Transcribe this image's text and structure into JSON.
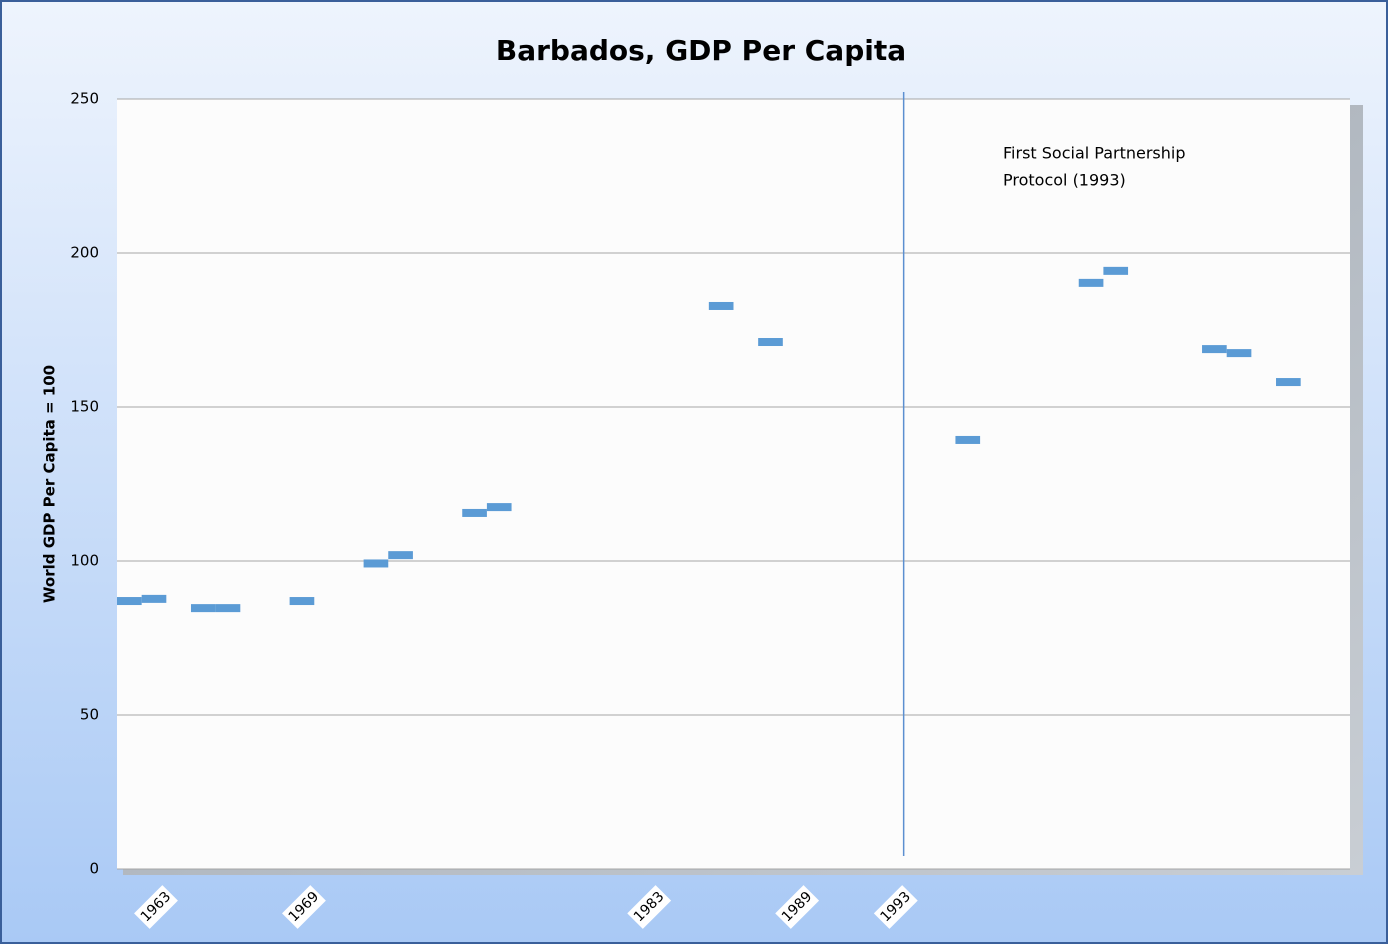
{
  "chart_data": {
    "type": "dash",
    "title": "Barbados, GDP Per Capita",
    "y_label": "World GDP Per Capita = 100",
    "annotation": {
      "text_lines": [
        "First Social Partnership",
        "Protocol (1993)"
      ],
      "category": "1993"
    },
    "categories": [
      null,
      "1963",
      null,
      null,
      null,
      null,
      null,
      "1969",
      null,
      null,
      null,
      null,
      null,
      null,
      null,
      null,
      null,
      null,
      null,
      null,
      null,
      "1983",
      null,
      null,
      null,
      null,
      null,
      "1989",
      null,
      null,
      null,
      "1993",
      null,
      null,
      null,
      null,
      null,
      null,
      null,
      null,
      null,
      null,
      null,
      null,
      null,
      null,
      null,
      null,
      null,
      null
    ],
    "values": [
      87,
      87.7,
      null,
      84.7,
      84.7,
      null,
      null,
      87,
      null,
      null,
      99.2,
      101.9,
      null,
      null,
      115.6,
      117.5,
      null,
      null,
      null,
      null,
      null,
      null,
      null,
      null,
      182.8,
      null,
      171.1,
      null,
      null,
      null,
      null,
      null,
      null,
      null,
      139.3,
      null,
      null,
      null,
      null,
      190.3,
      194.2,
      null,
      null,
      null,
      168.8,
      167.5,
      null,
      158.1,
      null,
      null
    ],
    "color": "#5b9bd5",
    "ylim": [
      0,
      250
    ],
    "yticks": [
      0,
      50,
      100,
      150,
      200,
      250
    ],
    "grid": true
  }
}
